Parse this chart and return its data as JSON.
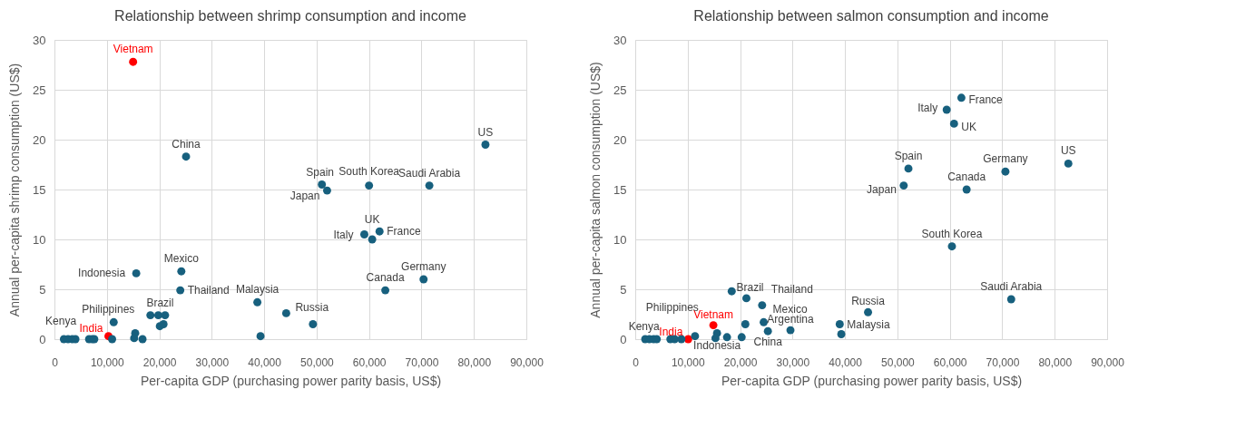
{
  "chart_data": [
    {
      "type": "scatter",
      "title": "Relationship between shrimp consumption and income",
      "xlabel": "Per-capita GDP (purchasing power parity basis, US$)",
      "ylabel": "Annual per-capita shrimp consumption (US$)",
      "xlim": [
        0,
        90000
      ],
      "xticks": [
        0,
        {
          "value": 10000,
          "label": "10,000"
        },
        {
          "value": 20000,
          "label": "20,000"
        },
        {
          "value": 30000,
          "label": "30,000"
        },
        {
          "value": 40000,
          "label": "40,000"
        },
        {
          "value": 50000,
          "label": "50,000"
        },
        {
          "value": 60000,
          "label": "60,000"
        },
        {
          "value": 70000,
          "label": "70,000"
        },
        {
          "value": 80000,
          "label": "80,000"
        },
        {
          "value": 90000,
          "label": "90,000"
        }
      ],
      "ylim": [
        0,
        30
      ],
      "yticks": [
        0,
        5,
        10,
        15,
        20,
        25,
        30
      ],
      "grid": true,
      "marker": "circle",
      "series": [
        {
          "color": "#17607e",
          "x": [
            15000,
            25100,
            82200,
            51000,
            52000,
            60000,
            71500,
            59100,
            60600,
            62000,
            63100,
            70400,
            15600,
            24200,
            24000,
            38700,
            44200,
            39300,
            49300,
            11300,
            18300,
            19800,
            21100,
            20100,
            20800,
            10300,
            11000,
            15400,
            15200,
            16800,
            1800,
            2600,
            3400,
            4000,
            6600,
            7200,
            7600
          ],
          "values": [
            27.8,
            18.3,
            19.5,
            15.5,
            14.9,
            15.4,
            15.4,
            10.5,
            10.0,
            10.8,
            4.9,
            6.0,
            6.6,
            6.8,
            4.9,
            3.7,
            2.6,
            0.3,
            1.5,
            1.7,
            2.4,
            2.4,
            2.4,
            1.3,
            1.5,
            0.3,
            0,
            0.6,
            0.1,
            0,
            0,
            0,
            0,
            0,
            0,
            0,
            0
          ],
          "colors": [
            "#ff0000",
            "#17607e",
            "#17607e",
            "#17607e",
            "#17607e",
            "#17607e",
            "#17607e",
            "#17607e",
            "#17607e",
            "#17607e",
            "#17607e",
            "#17607e",
            "#17607e",
            "#17607e",
            "#17607e",
            "#17607e",
            "#17607e",
            "#17607e",
            "#17607e",
            "#17607e",
            "#17607e",
            "#17607e",
            "#17607e",
            "#17607e",
            "#17607e",
            "#ff0000",
            "#17607e",
            "#17607e",
            "#17607e",
            "#17607e",
            "#17607e",
            "#17607e",
            "#17607e",
            "#17607e",
            "#17607e",
            "#17607e",
            "#17607e"
          ]
        }
      ],
      "annotations": [
        {
          "text": "Vietnam",
          "x": 15000,
          "y": 27.8
        },
        {
          "text": "China",
          "x": 25100,
          "y": 18.3
        },
        {
          "text": "US",
          "x": 82200,
          "y": 19.5
        },
        {
          "text": "Spain",
          "x": 51000,
          "y": 15.5
        },
        {
          "text": "Japan",
          "x": 52000,
          "y": 14.9
        },
        {
          "text": "South Korea",
          "x": 60000,
          "y": 15.4
        },
        {
          "text": "Saudi Arabia",
          "x": 71500,
          "y": 15.4
        },
        {
          "text": "Italy",
          "x": 59100,
          "y": 10.5
        },
        {
          "text": "UK",
          "x": 60600,
          "y": 10.0
        },
        {
          "text": "France",
          "x": 62000,
          "y": 10.8
        },
        {
          "text": "Canada",
          "x": 63100,
          "y": 4.9
        },
        {
          "text": "Germany",
          "x": 70400,
          "y": 6.0
        },
        {
          "text": "Indonesia",
          "x": 15600,
          "y": 6.6
        },
        {
          "text": "Mexico",
          "x": 24200,
          "y": 6.8
        },
        {
          "text": "Thailand",
          "x": 24000,
          "y": 4.9
        },
        {
          "text": "Malaysia",
          "x": 38700,
          "y": 3.7
        },
        {
          "text": "Russia",
          "x": 44200,
          "y": 2.6
        },
        {
          "text": "Philippines",
          "x": 11300,
          "y": 1.7
        },
        {
          "text": "Brazil",
          "x": 19800,
          "y": 2.4
        },
        {
          "text": "Kenya",
          "x": 6600,
          "y": 0
        },
        {
          "text": "India",
          "x": 10300,
          "y": 0.3
        }
      ]
    },
    {
      "type": "scatter",
      "title": "Relationship between salmon consumption and income",
      "xlabel": "Per-capita GDP (purchasing power parity basis, US$)",
      "ylabel": "Annual per-capita salmon consumption (US$)",
      "xlim": [
        0,
        90000
      ],
      "xticks": [
        0,
        {
          "value": 10000,
          "label": "10,000"
        },
        {
          "value": 20000,
          "label": "20,000"
        },
        {
          "value": 30000,
          "label": "30,000"
        },
        {
          "value": 40000,
          "label": "40,000"
        },
        {
          "value": 50000,
          "label": "50,000"
        },
        {
          "value": 60000,
          "label": "60,000"
        },
        {
          "value": 70000,
          "label": "70,000"
        },
        {
          "value": 80000,
          "label": "80,000"
        },
        {
          "value": 90000,
          "label": "90,000"
        }
      ],
      "ylim": [
        0,
        30
      ],
      "yticks": [
        0,
        5,
        10,
        15,
        20,
        25,
        30
      ],
      "grid": true,
      "marker": "circle",
      "series": [
        {
          "color": "#17607e",
          "x": [
            62200,
            59400,
            60800,
            52100,
            51200,
            70600,
            63200,
            82600,
            60400,
            71700,
            44400,
            39000,
            39300,
            29600,
            25300,
            24500,
            24200,
            21200,
            18400,
            21000,
            14900,
            10100,
            11400,
            15600,
            15300,
            17500,
            20300,
            1900,
            2700,
            3500,
            4100,
            6700,
            7500,
            8800
          ],
          "values": [
            24.2,
            23.0,
            21.6,
            17.1,
            15.4,
            16.8,
            15.0,
            17.6,
            9.3,
            4.0,
            2.7,
            1.5,
            0.5,
            0.9,
            0.8,
            1.7,
            3.4,
            4.1,
            4.8,
            1.5,
            1.4,
            0,
            0.3,
            0.6,
            0.1,
            0.2,
            0.2,
            0,
            0,
            0,
            0,
            0,
            0,
            0
          ],
          "colors": [
            "#17607e",
            "#17607e",
            "#17607e",
            "#17607e",
            "#17607e",
            "#17607e",
            "#17607e",
            "#17607e",
            "#17607e",
            "#17607e",
            "#17607e",
            "#17607e",
            "#17607e",
            "#17607e",
            "#17607e",
            "#17607e",
            "#17607e",
            "#17607e",
            "#17607e",
            "#17607e",
            "#ff0000",
            "#ff0000",
            "#17607e",
            "#17607e",
            "#17607e",
            "#17607e",
            "#17607e",
            "#17607e",
            "#17607e",
            "#17607e",
            "#17607e",
            "#17607e",
            "#17607e",
            "#17607e"
          ]
        }
      ],
      "annotations": [
        {
          "text": "France",
          "x": 62200,
          "y": 24.2
        },
        {
          "text": "Italy",
          "x": 59400,
          "y": 23.0
        },
        {
          "text": "UK",
          "x": 60800,
          "y": 21.6
        },
        {
          "text": "Spain",
          "x": 52100,
          "y": 17.1
        },
        {
          "text": "Japan",
          "x": 51200,
          "y": 15.4
        },
        {
          "text": "Germany",
          "x": 70600,
          "y": 16.8
        },
        {
          "text": "Canada",
          "x": 63200,
          "y": 15.0
        },
        {
          "text": "US",
          "x": 82600,
          "y": 17.6
        },
        {
          "text": "South Korea",
          "x": 60400,
          "y": 9.3
        },
        {
          "text": "Saudi Arabia",
          "x": 71700,
          "y": 4.0
        },
        {
          "text": "Russia",
          "x": 44400,
          "y": 2.7
        },
        {
          "text": "Malaysia",
          "x": 39000,
          "y": 1.5
        },
        {
          "text": "Argentina",
          "x": 29600,
          "y": 0.9
        },
        {
          "text": "China",
          "x": 25300,
          "y": 0.8
        },
        {
          "text": "Mexico",
          "x": 24500,
          "y": 1.7
        },
        {
          "text": "Thailand",
          "x": 24200,
          "y": 3.4
        },
        {
          "text": "Brazil",
          "x": 21200,
          "y": 4.1
        },
        {
          "text": "Vietnam",
          "x": 14900,
          "y": 1.4
        },
        {
          "text": "Philippines",
          "x": 11400,
          "y": 0.3
        },
        {
          "text": "Indonesia",
          "x": 15600,
          "y": 0.6
        },
        {
          "text": "Kenya",
          "x": 6700,
          "y": 0
        },
        {
          "text": "India",
          "x": 10100,
          "y": 0
        }
      ]
    }
  ]
}
